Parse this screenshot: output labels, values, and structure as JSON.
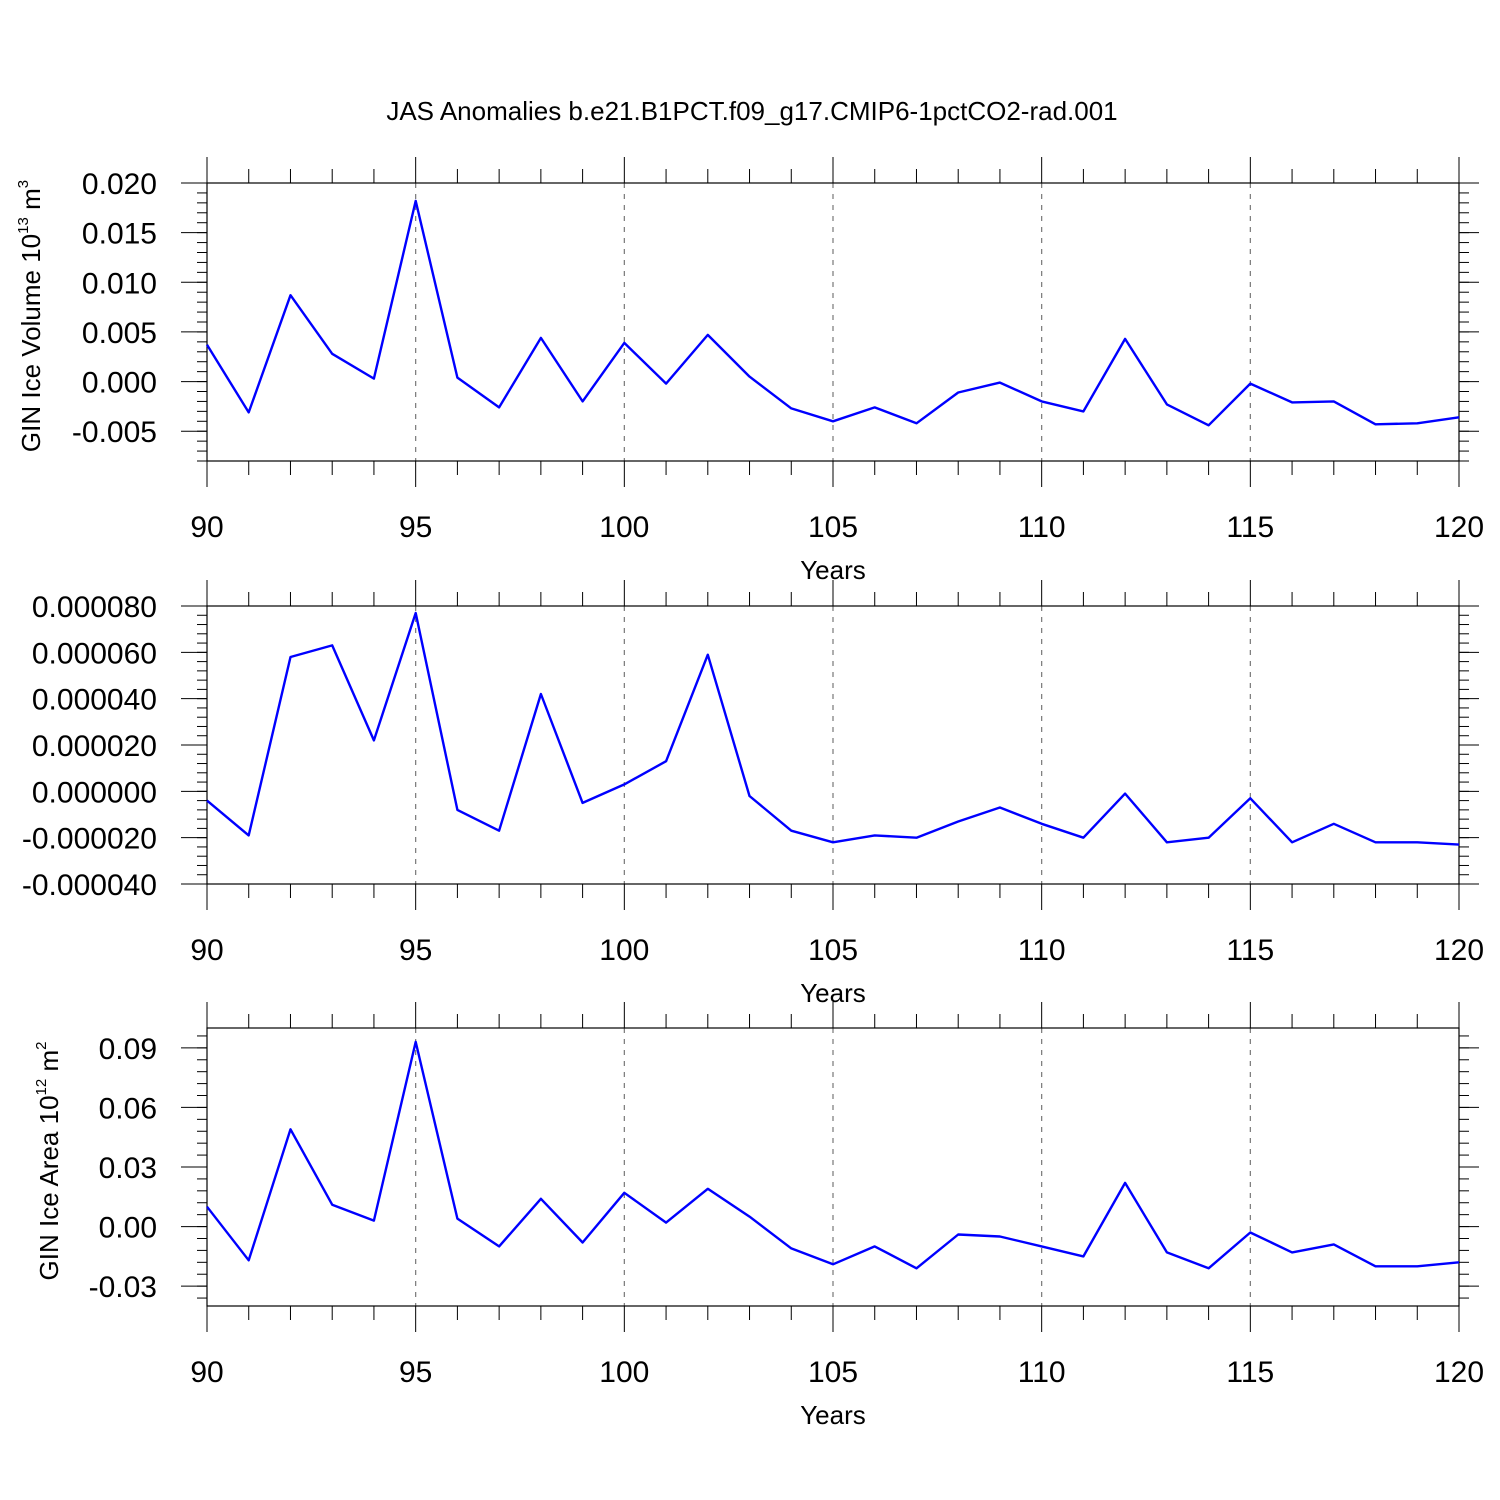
{
  "title": "JAS Anomalies b.e21.B1PCT.f09_g17.CMIP6-1pctCO2-rad.001",
  "chart_data": [
    {
      "type": "line",
      "ylabel": "GIN Ice Volume 10",
      "ylabel_exp": "13",
      "ylabel_unit": "m",
      "ylabel_unit_exp": "3",
      "xlabel": "Years",
      "xlim": [
        90,
        120
      ],
      "ylim": [
        -0.008,
        0.02
      ],
      "y_ticks": [
        -0.005,
        0.0,
        0.005,
        0.01,
        0.015,
        0.02
      ],
      "y_tick_labels": [
        "-0.005",
        "0.000",
        "0.005",
        "0.010",
        "0.015",
        "0.020"
      ],
      "y_minor_step": 0.001,
      "x_ticks": [
        90,
        95,
        100,
        105,
        110,
        115,
        120
      ],
      "x_tick_labels": [
        "90",
        "95",
        "100",
        "105",
        "110",
        "115",
        "120"
      ],
      "grid_x": [
        95,
        100,
        105,
        110,
        115
      ],
      "x": [
        90,
        91,
        92,
        93,
        94,
        95,
        96,
        97,
        98,
        99,
        100,
        101,
        102,
        103,
        104,
        105,
        106,
        107,
        108,
        109,
        110,
        111,
        112,
        113,
        114,
        115,
        116,
        117,
        118,
        119,
        120
      ],
      "series": [
        {
          "values": [
            0.0037,
            -0.0031,
            0.0087,
            0.0028,
            0.0003,
            0.0182,
            0.0004,
            -0.0026,
            0.0044,
            -0.002,
            0.0039,
            -0.0002,
            0.0047,
            0.0005,
            -0.0027,
            -0.004,
            -0.0026,
            -0.0042,
            -0.0011,
            -0.0001,
            -0.002,
            -0.003,
            0.0043,
            -0.0023,
            -0.0044,
            -0.0002,
            -0.0021,
            -0.002,
            -0.0043,
            -0.0042,
            -0.0036
          ],
          "color": "#0000ff"
        }
      ]
    },
    {
      "type": "line",
      "ylabel": "",
      "xlabel": "Years",
      "xlim": [
        90,
        120
      ],
      "ylim": [
        -4e-05,
        8e-05
      ],
      "y_ticks": [
        -4e-05,
        -2e-05,
        0.0,
        2e-05,
        4e-05,
        6e-05,
        8e-05
      ],
      "y_tick_labels": [
        "-0.000040",
        "-0.000020",
        "0.000000",
        "0.000020",
        "0.000040",
        "0.000060",
        "0.000080"
      ],
      "y_minor_step": 4e-06,
      "x_ticks": [
        90,
        95,
        100,
        105,
        110,
        115,
        120
      ],
      "x_tick_labels": [
        "90",
        "95",
        "100",
        "105",
        "110",
        "115",
        "120"
      ],
      "grid_x": [
        95,
        100,
        105,
        110,
        115
      ],
      "x": [
        90,
        91,
        92,
        93,
        94,
        95,
        96,
        97,
        98,
        99,
        100,
        101,
        102,
        103,
        104,
        105,
        106,
        107,
        108,
        109,
        110,
        111,
        112,
        113,
        114,
        115,
        116,
        117,
        118,
        119,
        120
      ],
      "series": [
        {
          "values": [
            -4e-06,
            -1.9e-05,
            5.8e-05,
            6.3e-05,
            2.2e-05,
            7.7e-05,
            -8e-06,
            -1.7e-05,
            4.2e-05,
            -5e-06,
            3e-06,
            1.3e-05,
            5.9e-05,
            -2e-06,
            -1.7e-05,
            -2.2e-05,
            -1.9e-05,
            -2e-05,
            -1.3e-05,
            -7e-06,
            -1.4e-05,
            -2e-05,
            -1e-06,
            -2.2e-05,
            -2e-05,
            -3e-06,
            -2.2e-05,
            -1.4e-05,
            -2.2e-05,
            -2.2e-05,
            -2.3e-05
          ],
          "color": "#0000ff"
        }
      ]
    },
    {
      "type": "line",
      "ylabel": "GIN Ice Area 10",
      "ylabel_exp": "12",
      "ylabel_unit": "m",
      "ylabel_unit_exp": "2",
      "xlabel": "Years",
      "xlim": [
        90,
        120
      ],
      "ylim": [
        -0.04,
        0.1
      ],
      "y_ticks": [
        -0.03,
        0.0,
        0.03,
        0.06,
        0.09
      ],
      "y_tick_labels": [
        "-0.03",
        "0.00",
        "0.03",
        "0.06",
        "0.09"
      ],
      "y_minor_step": 0.006,
      "x_ticks": [
        90,
        95,
        100,
        105,
        110,
        115,
        120
      ],
      "x_tick_labels": [
        "90",
        "95",
        "100",
        "105",
        "110",
        "115",
        "120"
      ],
      "grid_x": [
        95,
        100,
        105,
        110,
        115
      ],
      "x": [
        90,
        91,
        92,
        93,
        94,
        95,
        96,
        97,
        98,
        99,
        100,
        101,
        102,
        103,
        104,
        105,
        106,
        107,
        108,
        109,
        110,
        111,
        112,
        113,
        114,
        115,
        116,
        117,
        118,
        119,
        120
      ],
      "series": [
        {
          "values": [
            0.01,
            -0.017,
            0.049,
            0.011,
            0.003,
            0.093,
            0.004,
            -0.01,
            0.014,
            -0.008,
            0.017,
            0.002,
            0.019,
            0.005,
            -0.011,
            -0.019,
            -0.01,
            -0.021,
            -0.004,
            -0.005,
            -0.01,
            -0.015,
            0.022,
            -0.013,
            -0.021,
            -0.003,
            -0.013,
            -0.009,
            -0.02,
            -0.02,
            -0.018
          ],
          "color": "#0000ff"
        }
      ]
    }
  ]
}
